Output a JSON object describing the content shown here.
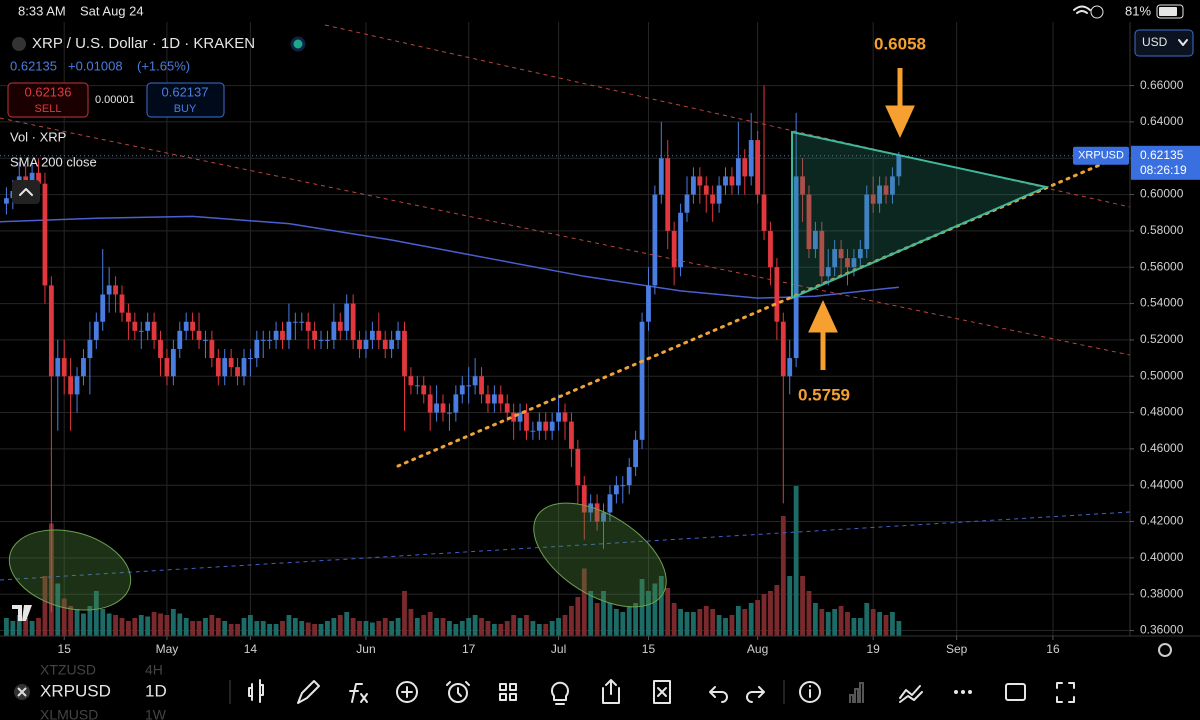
{
  "status": {
    "time": "8:33 AM",
    "date": "Sat Aug 24",
    "battery": "81%"
  },
  "header": {
    "title": "XRP / U.S. Dollar · 1D · KRAKEN",
    "price": "0.62135",
    "change": "+0.01008",
    "change_pct": "(+1.65%)",
    "sell_price": "0.62136",
    "sell_label": "SELL",
    "spread": "0.00001",
    "buy_price": "0.62137",
    "buy_label": "BUY",
    "volume_label": "Vol · XRP",
    "sma_label": "SMA 200 close",
    "currency": "USD"
  },
  "chart_data": {
    "type": "candlestick",
    "up_color": "#4a7de0",
    "down_color": "#e0383e",
    "volume_up_color": "#1d6b66",
    "volume_down_color": "#7a2a2c",
    "grid": true,
    "x": [
      "04-06",
      "04-07",
      "04-08",
      "04-09",
      "04-10",
      "04-11",
      "04-12",
      "04-13",
      "04-14",
      "04-15",
      "04-16",
      "04-17",
      "04-18",
      "04-19",
      "04-20",
      "04-21",
      "04-22",
      "04-23",
      "04-24",
      "04-25",
      "04-26",
      "04-27",
      "04-28",
      "04-29",
      "04-30",
      "05-01",
      "05-02",
      "05-03",
      "05-04",
      "05-05",
      "05-06",
      "05-07",
      "05-08",
      "05-09",
      "05-10",
      "05-11",
      "05-12",
      "05-13",
      "05-14",
      "05-15",
      "05-16",
      "05-17",
      "05-18",
      "05-19",
      "05-20",
      "05-21",
      "05-22",
      "05-23",
      "05-24",
      "05-25",
      "05-26",
      "05-27",
      "05-28",
      "05-29",
      "05-30",
      "05-31",
      "06-01",
      "06-02",
      "06-03",
      "06-04",
      "06-05",
      "06-06",
      "06-07",
      "06-08",
      "06-09",
      "06-10",
      "06-11",
      "06-12",
      "06-13",
      "06-14",
      "06-15",
      "06-16",
      "06-17",
      "06-18",
      "06-19",
      "06-20",
      "06-21",
      "06-22",
      "06-23",
      "06-24",
      "06-25",
      "06-26",
      "06-27",
      "06-28",
      "06-29",
      "06-30",
      "07-01",
      "07-02",
      "07-03",
      "07-04",
      "07-05",
      "07-06",
      "07-07",
      "07-08",
      "07-09",
      "07-10",
      "07-11",
      "07-12",
      "07-13",
      "07-14",
      "07-15",
      "07-16",
      "07-17",
      "07-18",
      "07-19",
      "07-20",
      "07-21",
      "07-22",
      "07-23",
      "07-24",
      "07-25",
      "07-26",
      "07-27",
      "07-28",
      "07-29",
      "07-30",
      "07-31",
      "08-01",
      "08-02",
      "08-03",
      "08-04",
      "08-05",
      "08-06",
      "08-07",
      "08-08",
      "08-09",
      "08-10",
      "08-11",
      "08-12",
      "08-13",
      "08-14",
      "08-15",
      "08-16",
      "08-17",
      "08-18",
      "08-19",
      "08-20",
      "08-21",
      "08-22",
      "08-23"
    ],
    "candles": [
      [
        0.595,
        0.604,
        0.589,
        0.598
      ],
      [
        0.598,
        0.608,
        0.592,
        0.602
      ],
      [
        0.602,
        0.618,
        0.596,
        0.61
      ],
      [
        0.61,
        0.616,
        0.598,
        0.604
      ],
      [
        0.604,
        0.618,
        0.598,
        0.612
      ],
      [
        0.612,
        0.62,
        0.6,
        0.606
      ],
      [
        0.606,
        0.612,
        0.54,
        0.55
      ],
      [
        0.55,
        0.555,
        0.37,
        0.5
      ],
      [
        0.5,
        0.52,
        0.47,
        0.51
      ],
      [
        0.51,
        0.52,
        0.49,
        0.5
      ],
      [
        0.5,
        0.51,
        0.47,
        0.49
      ],
      [
        0.49,
        0.505,
        0.48,
        0.5
      ],
      [
        0.5,
        0.515,
        0.495,
        0.51
      ],
      [
        0.51,
        0.53,
        0.49,
        0.52
      ],
      [
        0.52,
        0.535,
        0.515,
        0.53
      ],
      [
        0.53,
        0.57,
        0.525,
        0.545
      ],
      [
        0.545,
        0.56,
        0.535,
        0.55
      ],
      [
        0.55,
        0.555,
        0.535,
        0.545
      ],
      [
        0.545,
        0.55,
        0.53,
        0.535
      ],
      [
        0.535,
        0.54,
        0.52,
        0.53
      ],
      [
        0.53,
        0.535,
        0.52,
        0.525
      ],
      [
        0.525,
        0.53,
        0.515,
        0.525
      ],
      [
        0.525,
        0.535,
        0.52,
        0.53
      ],
      [
        0.53,
        0.535,
        0.515,
        0.52
      ],
      [
        0.52,
        0.525,
        0.5,
        0.51
      ],
      [
        0.51,
        0.515,
        0.495,
        0.5
      ],
      [
        0.5,
        0.52,
        0.495,
        0.515
      ],
      [
        0.515,
        0.53,
        0.51,
        0.525
      ],
      [
        0.525,
        0.535,
        0.52,
        0.53
      ],
      [
        0.53,
        0.535,
        0.52,
        0.525
      ],
      [
        0.525,
        0.535,
        0.515,
        0.52
      ],
      [
        0.52,
        0.525,
        0.51,
        0.52
      ],
      [
        0.52,
        0.525,
        0.505,
        0.51
      ],
      [
        0.51,
        0.515,
        0.495,
        0.5
      ],
      [
        0.5,
        0.515,
        0.495,
        0.51
      ],
      [
        0.51,
        0.515,
        0.5,
        0.505
      ],
      [
        0.505,
        0.51,
        0.495,
        0.5
      ],
      [
        0.5,
        0.515,
        0.495,
        0.51
      ],
      [
        0.51,
        0.515,
        0.5,
        0.51
      ],
      [
        0.51,
        0.525,
        0.505,
        0.52
      ],
      [
        0.52,
        0.525,
        0.51,
        0.52
      ],
      [
        0.52,
        0.525,
        0.515,
        0.52
      ],
      [
        0.52,
        0.53,
        0.515,
        0.525
      ],
      [
        0.525,
        0.53,
        0.515,
        0.52
      ],
      [
        0.52,
        0.54,
        0.515,
        0.53
      ],
      [
        0.53,
        0.535,
        0.52,
        0.53
      ],
      [
        0.53,
        0.535,
        0.525,
        0.53
      ],
      [
        0.53,
        0.535,
        0.515,
        0.525
      ],
      [
        0.525,
        0.53,
        0.515,
        0.52
      ],
      [
        0.52,
        0.525,
        0.515,
        0.52
      ],
      [
        0.52,
        0.525,
        0.515,
        0.52
      ],
      [
        0.52,
        0.54,
        0.515,
        0.53
      ],
      [
        0.53,
        0.535,
        0.52,
        0.525
      ],
      [
        0.525,
        0.545,
        0.52,
        0.54
      ],
      [
        0.54,
        0.545,
        0.515,
        0.52
      ],
      [
        0.52,
        0.525,
        0.51,
        0.515
      ],
      [
        0.515,
        0.525,
        0.51,
        0.52
      ],
      [
        0.52,
        0.53,
        0.515,
        0.525
      ],
      [
        0.525,
        0.535,
        0.515,
        0.52
      ],
      [
        0.52,
        0.525,
        0.51,
        0.515
      ],
      [
        0.515,
        0.525,
        0.51,
        0.52
      ],
      [
        0.52,
        0.53,
        0.515,
        0.525
      ],
      [
        0.525,
        0.53,
        0.47,
        0.5
      ],
      [
        0.5,
        0.505,
        0.49,
        0.495
      ],
      [
        0.495,
        0.5,
        0.49,
        0.495
      ],
      [
        0.495,
        0.5,
        0.485,
        0.49
      ],
      [
        0.49,
        0.495,
        0.47,
        0.48
      ],
      [
        0.48,
        0.495,
        0.475,
        0.485
      ],
      [
        0.485,
        0.49,
        0.475,
        0.48
      ],
      [
        0.48,
        0.485,
        0.47,
        0.48
      ],
      [
        0.48,
        0.495,
        0.475,
        0.49
      ],
      [
        0.49,
        0.5,
        0.485,
        0.495
      ],
      [
        0.495,
        0.505,
        0.485,
        0.495
      ],
      [
        0.495,
        0.51,
        0.49,
        0.5
      ],
      [
        0.5,
        0.505,
        0.485,
        0.49
      ],
      [
        0.49,
        0.495,
        0.48,
        0.485
      ],
      [
        0.485,
        0.495,
        0.48,
        0.49
      ],
      [
        0.49,
        0.495,
        0.48,
        0.485
      ],
      [
        0.485,
        0.49,
        0.475,
        0.48
      ],
      [
        0.48,
        0.485,
        0.465,
        0.475
      ],
      [
        0.475,
        0.485,
        0.47,
        0.48
      ],
      [
        0.48,
        0.485,
        0.465,
        0.47
      ],
      [
        0.47,
        0.475,
        0.465,
        0.47
      ],
      [
        0.47,
        0.48,
        0.465,
        0.475
      ],
      [
        0.475,
        0.48,
        0.465,
        0.47
      ],
      [
        0.47,
        0.48,
        0.465,
        0.475
      ],
      [
        0.475,
        0.49,
        0.47,
        0.48
      ],
      [
        0.48,
        0.485,
        0.465,
        0.475
      ],
      [
        0.475,
        0.48,
        0.45,
        0.46
      ],
      [
        0.46,
        0.465,
        0.43,
        0.44
      ],
      [
        0.44,
        0.445,
        0.41,
        0.425
      ],
      [
        0.425,
        0.435,
        0.42,
        0.43
      ],
      [
        0.43,
        0.435,
        0.415,
        0.42
      ],
      [
        0.42,
        0.43,
        0.405,
        0.425
      ],
      [
        0.425,
        0.44,
        0.42,
        0.435
      ],
      [
        0.435,
        0.445,
        0.43,
        0.44
      ],
      [
        0.44,
        0.445,
        0.43,
        0.44
      ],
      [
        0.44,
        0.455,
        0.435,
        0.45
      ],
      [
        0.45,
        0.47,
        0.445,
        0.465
      ],
      [
        0.465,
        0.535,
        0.46,
        0.53
      ],
      [
        0.53,
        0.56,
        0.525,
        0.55
      ],
      [
        0.55,
        0.605,
        0.545,
        0.6
      ],
      [
        0.6,
        0.64,
        0.595,
        0.62
      ],
      [
        0.62,
        0.63,
        0.57,
        0.58
      ],
      [
        0.58,
        0.585,
        0.55,
        0.56
      ],
      [
        0.56,
        0.595,
        0.555,
        0.59
      ],
      [
        0.59,
        0.61,
        0.585,
        0.6
      ],
      [
        0.6,
        0.615,
        0.595,
        0.61
      ],
      [
        0.61,
        0.615,
        0.595,
        0.605
      ],
      [
        0.605,
        0.61,
        0.59,
        0.6
      ],
      [
        0.6,
        0.605,
        0.585,
        0.595
      ],
      [
        0.595,
        0.61,
        0.59,
        0.605
      ],
      [
        0.605,
        0.615,
        0.6,
        0.61
      ],
      [
        0.61,
        0.615,
        0.6,
        0.605
      ],
      [
        0.605,
        0.64,
        0.6,
        0.62
      ],
      [
        0.62,
        0.625,
        0.6,
        0.61
      ],
      [
        0.61,
        0.645,
        0.605,
        0.63
      ],
      [
        0.63,
        0.635,
        0.595,
        0.6
      ],
      [
        0.6,
        0.66,
        0.575,
        0.58
      ],
      [
        0.58,
        0.585,
        0.55,
        0.56
      ],
      [
        0.56,
        0.565,
        0.52,
        0.53
      ],
      [
        0.53,
        0.535,
        0.43,
        0.5
      ],
      [
        0.5,
        0.52,
        0.49,
        0.51
      ],
      [
        0.51,
        0.645,
        0.505,
        0.61
      ],
      [
        0.61,
        0.62,
        0.585,
        0.6
      ],
      [
        0.6,
        0.605,
        0.565,
        0.57
      ],
      [
        0.57,
        0.585,
        0.565,
        0.58
      ],
      [
        0.58,
        0.585,
        0.55,
        0.555
      ],
      [
        0.555,
        0.57,
        0.55,
        0.56
      ],
      [
        0.56,
        0.575,
        0.555,
        0.57
      ],
      [
        0.57,
        0.575,
        0.555,
        0.565
      ],
      [
        0.565,
        0.57,
        0.55,
        0.56
      ],
      [
        0.56,
        0.57,
        0.555,
        0.565
      ],
      [
        0.565,
        0.575,
        0.56,
        0.57
      ],
      [
        0.57,
        0.605,
        0.565,
        0.6
      ],
      [
        0.6,
        0.61,
        0.59,
        0.595
      ],
      [
        0.595,
        0.61,
        0.59,
        0.605
      ],
      [
        0.605,
        0.61,
        0.595,
        0.6
      ],
      [
        0.6,
        0.615,
        0.595,
        0.61
      ],
      [
        0.61,
        0.6235,
        0.605,
        0.62135
      ]
    ],
    "volume": [
      12,
      10,
      14,
      12,
      10,
      12,
      40,
      75,
      35,
      25,
      20,
      18,
      15,
      20,
      30,
      18,
      15,
      14,
      12,
      10,
      12,
      14,
      13,
      16,
      15,
      14,
      18,
      15,
      12,
      10,
      10,
      12,
      14,
      12,
      10,
      8,
      8,
      12,
      14,
      10,
      10,
      8,
      8,
      10,
      14,
      12,
      10,
      9,
      8,
      8,
      10,
      12,
      14,
      16,
      12,
      10,
      10,
      9,
      10,
      12,
      10,
      12,
      30,
      18,
      12,
      14,
      16,
      12,
      12,
      10,
      8,
      10,
      12,
      14,
      12,
      10,
      8,
      8,
      10,
      14,
      12,
      14,
      10,
      8,
      8,
      10,
      12,
      14,
      20,
      26,
      45,
      30,
      22,
      30,
      22,
      18,
      16,
      20,
      22,
      38,
      30,
      35,
      40,
      32,
      22,
      18,
      16,
      16,
      18,
      20,
      18,
      14,
      12,
      14,
      20,
      18,
      22,
      24,
      28,
      30,
      34,
      80,
      40,
      100,
      40,
      30,
      22,
      18,
      16,
      18,
      20,
      16,
      12,
      12,
      22,
      18,
      16,
      14,
      16,
      10
    ],
    "sma": {
      "name": "SMA 200 close",
      "color": "#4a5fd0",
      "x": [
        "04-05",
        "04-20",
        "05-05",
        "05-20",
        "06-05",
        "06-20",
        "07-05",
        "07-20",
        "08-01",
        "08-10",
        "08-23"
      ],
      "values": [
        0.585,
        0.587,
        0.588,
        0.584,
        0.575,
        0.565,
        0.555,
        0.547,
        0.543,
        0.544,
        0.549
      ]
    },
    "xlim": [
      "04-05",
      "09-28"
    ],
    "xticks": [
      {
        "value": "04-15",
        "label": "15"
      },
      {
        "value": "05-01",
        "label": "May"
      },
      {
        "value": "05-14",
        "label": "14"
      },
      {
        "value": "06-01",
        "label": "Jun"
      },
      {
        "value": "06-17",
        "label": "17"
      },
      {
        "value": "07-01",
        "label": "Jul"
      },
      {
        "value": "07-15",
        "label": "15"
      },
      {
        "value": "08-01",
        "label": "Aug"
      },
      {
        "value": "08-19",
        "label": "19"
      },
      {
        "value": "09-01",
        "label": "Sep"
      },
      {
        "value": "09-16",
        "label": "16"
      }
    ],
    "ylim": [
      0.357,
      0.695
    ],
    "yticks": [
      {
        "value": 0.36,
        "label": "0.36000"
      },
      {
        "value": 0.38,
        "label": "0.38000"
      },
      {
        "value": 0.4,
        "label": "0.40000"
      },
      {
        "value": 0.42,
        "label": "0.42000"
      },
      {
        "value": 0.44,
        "label": "0.44000"
      },
      {
        "value": 0.46,
        "label": "0.46000"
      },
      {
        "value": 0.48,
        "label": "0.48000"
      },
      {
        "value": 0.5,
        "label": "0.50000"
      },
      {
        "value": 0.52,
        "label": "0.52000"
      },
      {
        "value": 0.54,
        "label": "0.54000"
      },
      {
        "value": 0.56,
        "label": "0.56000"
      },
      {
        "value": 0.58,
        "label": "0.58000"
      },
      {
        "value": 0.6,
        "label": "0.60000"
      },
      {
        "value": 0.62,
        "label": "0.62000"
      },
      {
        "value": 0.64,
        "label": "0.64000"
      },
      {
        "value": 0.66,
        "label": "0.66000"
      }
    ],
    "price_tag": {
      "symbol": "XRPUSD",
      "countdown": "08:26:19"
    },
    "annotations": [
      "0.6058",
      "0.5759"
    ]
  },
  "toolbar": {
    "symbol": "XRPUSD",
    "interval": "1D",
    "ghost": [
      {
        "symbol": "XTZUSD",
        "interval": "4H"
      },
      {
        "symbol": "XLMUSD",
        "interval": "1W"
      }
    ]
  }
}
